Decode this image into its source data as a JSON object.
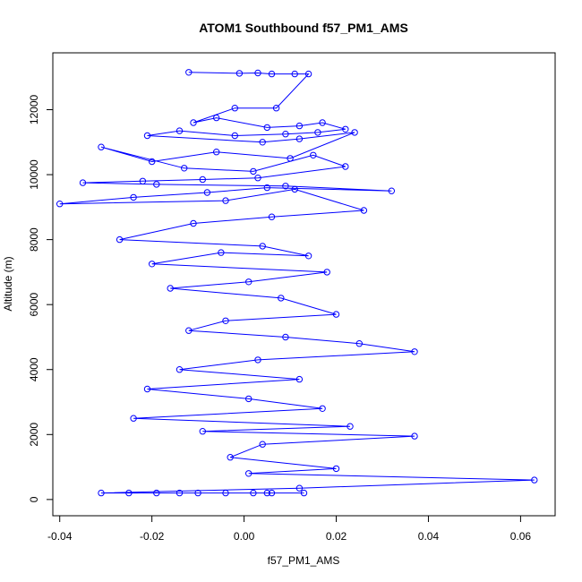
{
  "chart_data": {
    "type": "scatter",
    "title": "ATOM1 Southbound f57_PM1_AMS",
    "xlabel": "f57_PM1_AMS",
    "ylabel": "Altitude (m)",
    "xlim": [
      -0.0415,
      0.0675
    ],
    "ylim": [
      -500,
      13750
    ],
    "x_ticks": [
      -0.04,
      -0.02,
      0.0,
      0.02,
      0.04,
      0.06
    ],
    "x_tick_labels": [
      "-0.04",
      "-0.02",
      "0.00",
      "0.02",
      "0.04",
      "0.06"
    ],
    "y_ticks": [
      0,
      2000,
      4000,
      6000,
      8000,
      10000,
      12000
    ],
    "y_tick_labels": [
      "0",
      "2000",
      "4000",
      "6000",
      "8000",
      "10000",
      "12000"
    ],
    "grid": false,
    "series": [
      {
        "marker": "open-circle",
        "line": true,
        "color": "#0000ff",
        "x": [
          -0.012,
          -0.001,
          0.003,
          0.006,
          0.011,
          0.014,
          0.007,
          -0.002,
          -0.011,
          -0.006,
          0.005,
          0.012,
          0.017,
          0.022,
          0.016,
          0.009,
          -0.002,
          -0.014,
          -0.021,
          0.004,
          0.012,
          0.024,
          0.01,
          -0.006,
          -0.02,
          -0.031,
          -0.013,
          0.002,
          0.015,
          0.022,
          0.003,
          -0.009,
          -0.022,
          -0.035,
          -0.019,
          0.009,
          0.032,
          0.005,
          -0.008,
          -0.024,
          -0.04,
          -0.004,
          0.011,
          0.026,
          0.006,
          -0.011,
          -0.027,
          0.004,
          0.014,
          -0.005,
          -0.02,
          0.018,
          0.001,
          -0.016,
          0.008,
          0.02,
          -0.004,
          -0.012,
          0.009,
          0.025,
          0.037,
          0.003,
          -0.014,
          0.012,
          -0.021,
          0.001,
          0.017,
          -0.024,
          0.023,
          -0.009,
          0.037,
          0.004,
          -0.003,
          0.02,
          0.001,
          0.063,
          0.012,
          -0.031,
          -0.025,
          -0.019,
          -0.014,
          -0.01,
          -0.004,
          0.002,
          0.006,
          0.013,
          0.005
        ],
        "y": [
          13150,
          13120,
          13130,
          13100,
          13100,
          13100,
          12050,
          12050,
          11600,
          11750,
          11450,
          11500,
          11600,
          11400,
          11300,
          11250,
          11200,
          11350,
          11200,
          11000,
          11100,
          11300,
          10500,
          10700,
          10400,
          10850,
          10200,
          10100,
          10600,
          10250,
          9900,
          9850,
          9800,
          9750,
          9700,
          9650,
          9500,
          9600,
          9450,
          9300,
          9100,
          9200,
          9550,
          8900,
          8700,
          8500,
          8000,
          7800,
          7500,
          7600,
          7250,
          7000,
          6700,
          6500,
          6200,
          5700,
          5500,
          5200,
          5000,
          4800,
          4550,
          4300,
          4000,
          3700,
          3400,
          3100,
          2800,
          2500,
          2250,
          2100,
          1950,
          1700,
          1300,
          950,
          800,
          600,
          350,
          200,
          200,
          200,
          200,
          200,
          200,
          200,
          200,
          200,
          200
        ]
      }
    ]
  }
}
